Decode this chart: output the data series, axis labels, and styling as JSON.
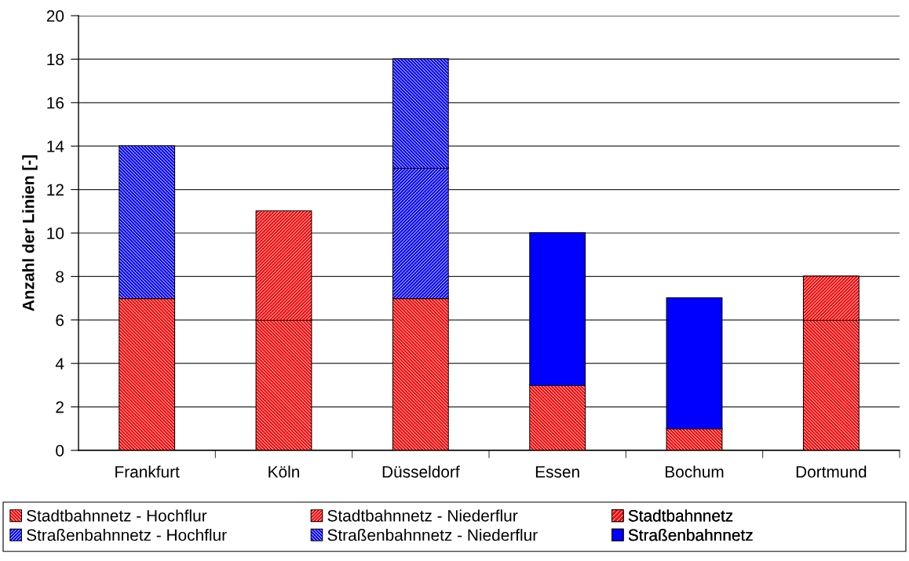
{
  "chart_data": {
    "type": "bar",
    "stacked": true,
    "ylabel": "Anzahl der Linien [-]",
    "categories": [
      "Frankfurt",
      "Köln",
      "Düsseldorf",
      "Essen",
      "Bochum",
      "Dortmund"
    ],
    "series": [
      {
        "name": "Stadtbahnnetz - Hochflur",
        "color": "#ff0000",
        "values": [
          7,
          6,
          7,
          3,
          1,
          6
        ]
      },
      {
        "name": "Stadtbahnnetz - Niederflur",
        "color": "#ff0000",
        "values": [
          null,
          5,
          null,
          null,
          null,
          2
        ]
      },
      {
        "name": "Stadtbahnnetz",
        "color": "#ff0000",
        "values": [
          null,
          null,
          null,
          null,
          null,
          null
        ]
      },
      {
        "name": "Straßenbahnnetz - Hochflur",
        "color": "#0000ff",
        "values": [
          null,
          null,
          6,
          null,
          null,
          null
        ]
      },
      {
        "name": "Straßenbahnnetz - Niederflur",
        "color": "#0000ff",
        "values": [
          7,
          null,
          5,
          null,
          null,
          null
        ]
      },
      {
        "name": "Straßenbahnnetz",
        "color": "#0000ff",
        "values": [
          null,
          null,
          null,
          7,
          6,
          null
        ]
      }
    ],
    "ylim": [
      0,
      20
    ],
    "yticks": [
      0,
      2,
      4,
      6,
      8,
      10,
      12,
      14,
      16,
      18,
      20
    ],
    "grid": "y",
    "legend": "bottom"
  }
}
